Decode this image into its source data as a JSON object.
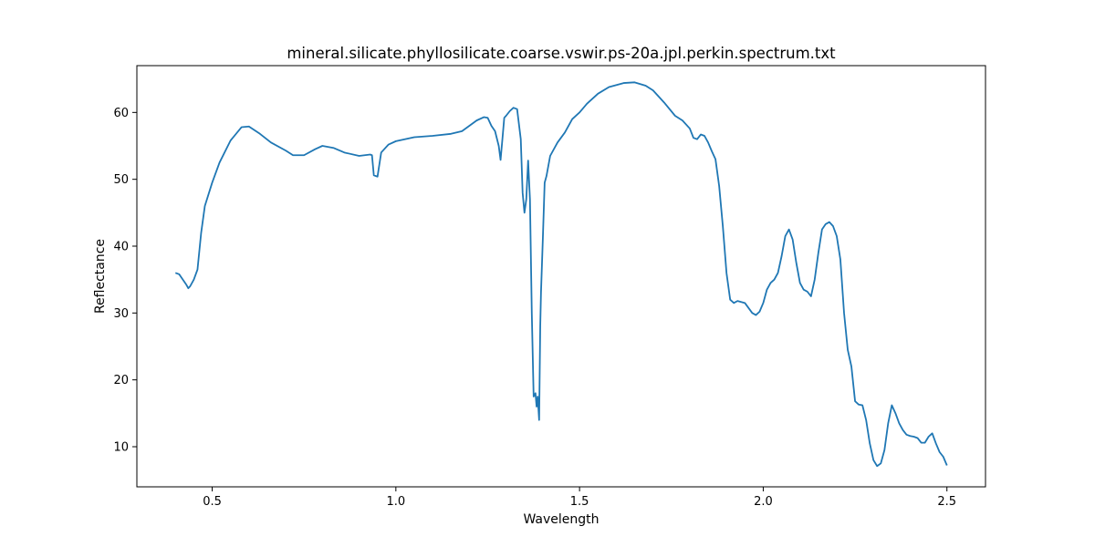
{
  "chart_data": {
    "type": "line",
    "title": "mineral.silicate.phyllosilicate.coarse.vswir.ps-20a.jpl.perkin.spectrum.txt",
    "xlabel": "Wavelength",
    "ylabel": "Reflectance",
    "xlim": [
      0.295,
      2.605
    ],
    "ylim": [
      4.0,
      67.0
    ],
    "xticks": [
      0.5,
      1.0,
      1.5,
      2.0,
      2.5
    ],
    "xtick_labels": [
      "0.5",
      "1.0",
      "1.5",
      "2.0",
      "2.5"
    ],
    "yticks": [
      10,
      20,
      30,
      40,
      50,
      60
    ],
    "ytick_labels": [
      "10",
      "20",
      "30",
      "40",
      "50",
      "60"
    ],
    "grid": false,
    "legend": "none",
    "series": [
      {
        "color": "#1f77b4",
        "x": [
          0.4,
          0.41,
          0.42,
          0.43,
          0.435,
          0.44,
          0.45,
          0.46,
          0.47,
          0.48,
          0.5,
          0.52,
          0.55,
          0.58,
          0.6,
          0.63,
          0.66,
          0.7,
          0.72,
          0.75,
          0.78,
          0.8,
          0.83,
          0.86,
          0.9,
          0.93,
          0.935,
          0.94,
          0.945,
          0.95,
          0.96,
          0.98,
          1.0,
          1.05,
          1.1,
          1.15,
          1.18,
          1.2,
          1.22,
          1.24,
          1.25,
          1.26,
          1.27,
          1.28,
          1.285,
          1.29,
          1.295,
          1.3,
          1.31,
          1.32,
          1.33,
          1.34,
          1.345,
          1.35,
          1.355,
          1.36,
          1.365,
          1.37,
          1.375,
          1.38,
          1.383,
          1.386,
          1.39,
          1.393,
          1.395,
          1.4,
          1.405,
          1.41,
          1.42,
          1.44,
          1.46,
          1.48,
          1.5,
          1.52,
          1.55,
          1.58,
          1.62,
          1.65,
          1.68,
          1.7,
          1.73,
          1.76,
          1.78,
          1.8,
          1.81,
          1.82,
          1.83,
          1.84,
          1.85,
          1.86,
          1.87,
          1.88,
          1.89,
          1.9,
          1.91,
          1.92,
          1.93,
          1.95,
          1.97,
          1.98,
          1.99,
          2.0,
          2.01,
          2.02,
          2.03,
          2.04,
          2.05,
          2.06,
          2.07,
          2.08,
          2.09,
          2.1,
          2.11,
          2.12,
          2.13,
          2.14,
          2.15,
          2.16,
          2.17,
          2.18,
          2.19,
          2.2,
          2.21,
          2.22,
          2.23,
          2.24,
          2.25,
          2.26,
          2.27,
          2.28,
          2.29,
          2.3,
          2.31,
          2.32,
          2.33,
          2.34,
          2.35,
          2.36,
          2.37,
          2.38,
          2.39,
          2.4,
          2.41,
          2.42,
          2.43,
          2.44,
          2.45,
          2.46,
          2.47,
          2.48,
          2.49,
          2.5
        ],
        "y": [
          36.0,
          35.8,
          35.0,
          34.2,
          33.7,
          34.0,
          35.0,
          36.5,
          42.0,
          46.0,
          49.5,
          52.5,
          55.8,
          57.8,
          57.9,
          56.8,
          55.5,
          54.3,
          53.6,
          53.6,
          54.5,
          55.0,
          54.7,
          54.0,
          53.5,
          53.7,
          53.6,
          50.6,
          50.5,
          50.4,
          54.0,
          55.2,
          55.7,
          56.3,
          56.5,
          56.8,
          57.2,
          58.0,
          58.8,
          59.3,
          59.2,
          58.0,
          57.2,
          55.0,
          52.9,
          56.0,
          59.2,
          59.5,
          60.2,
          60.7,
          60.5,
          56.0,
          48.0,
          45.0,
          47.0,
          52.8,
          47.0,
          30.0,
          17.5,
          18.0,
          16.0,
          17.5,
          14.0,
          28.0,
          33.0,
          41.0,
          49.5,
          50.5,
          53.5,
          55.5,
          57.0,
          59.0,
          60.0,
          61.3,
          62.8,
          63.8,
          64.4,
          64.5,
          64.0,
          63.3,
          61.5,
          59.5,
          58.8,
          57.6,
          56.2,
          56.0,
          56.7,
          56.5,
          55.5,
          54.2,
          53.0,
          49.0,
          43.0,
          36.0,
          32.0,
          31.5,
          31.8,
          31.5,
          30.0,
          29.7,
          30.2,
          31.5,
          33.5,
          34.5,
          35.0,
          36.0,
          38.5,
          41.5,
          42.5,
          41.0,
          37.5,
          34.5,
          33.5,
          33.2,
          32.5,
          35.0,
          39.0,
          42.5,
          43.3,
          43.6,
          43.0,
          41.5,
          38.0,
          30.0,
          24.5,
          22.0,
          16.8,
          16.3,
          16.2,
          14.0,
          10.5,
          8.0,
          7.1,
          7.5,
          9.5,
          13.5,
          16.2,
          15.0,
          13.5,
          12.5,
          11.8,
          11.6,
          11.5,
          11.3,
          10.6,
          10.6,
          11.5,
          12.0,
          10.5,
          9.2,
          8.5,
          7.2
        ]
      }
    ]
  }
}
